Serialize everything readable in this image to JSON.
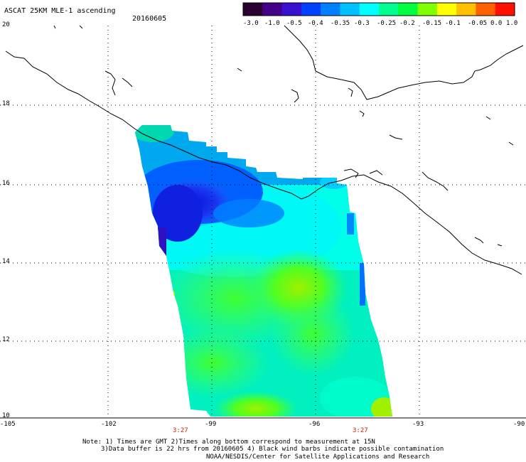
{
  "header": {
    "title": "ASCAT 25KM MLE-1 ascending",
    "date": "20160605"
  },
  "colorbar": {
    "labels": [
      "-3.0",
      "-1.0",
      "-0.5",
      "-0.4",
      "-0.35",
      "-0.3",
      "-0.25",
      "-0.2",
      "-0.15",
      "-0.1",
      "-0.05",
      "0.0",
      "1.0"
    ],
    "colors": [
      "#2a0030",
      "#440088",
      "#3a10d0",
      "#0040ff",
      "#0080ff",
      "#00c0ff",
      "#00ffff",
      "#00ff90",
      "#00ff40",
      "#80ff00",
      "#ffff00",
      "#ffc000",
      "#ff6000",
      "#ff1000"
    ]
  },
  "axes": {
    "lat_labels": [
      "20",
      "18",
      "16",
      "14",
      "12",
      "10"
    ],
    "lon_labels": [
      "-105",
      "-102",
      "-99",
      "-96",
      "-93",
      "-90"
    ]
  },
  "times": {
    "left": "3:27",
    "right": "3:27"
  },
  "notes": {
    "line1": "Note: 1) Times are GMT 2)Times along bottom correspond to measurement at 15N",
    "line2": "3)Data buffer is 22 hrs from 20160605 4) Black wind barbs indicate possible contamination",
    "line3": "NOAA/NESDIS/Center for Satellite Applications and Research"
  }
}
